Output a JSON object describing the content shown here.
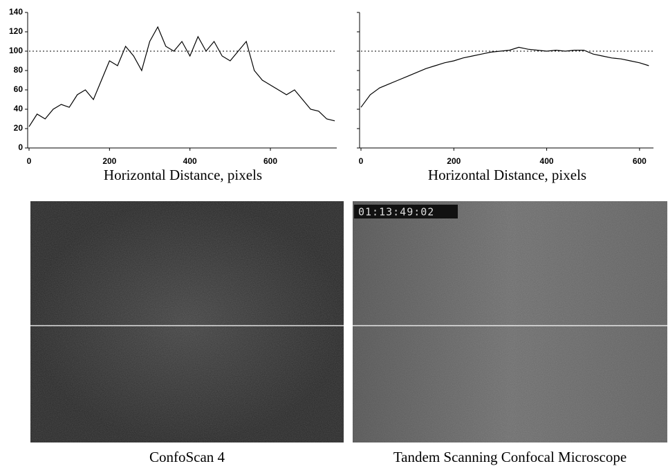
{
  "chart_data": [
    {
      "type": "line",
      "xlabel": "Horizontal Distance, pixels",
      "x": [
        0,
        20,
        40,
        60,
        80,
        100,
        120,
        140,
        160,
        180,
        200,
        220,
        240,
        260,
        280,
        300,
        320,
        340,
        360,
        380,
        400,
        420,
        440,
        460,
        480,
        500,
        520,
        540,
        560,
        580,
        600,
        620,
        640,
        660,
        680,
        700,
        720,
        740,
        760
      ],
      "series": [
        {
          "color": "#000000",
          "values": [
            22,
            35,
            30,
            40,
            45,
            42,
            55,
            60,
            50,
            70,
            90,
            85,
            105,
            95,
            80,
            110,
            125,
            105,
            100,
            110,
            95,
            115,
            100,
            110,
            95,
            90,
            100,
            110,
            80,
            70,
            65,
            60,
            55,
            60,
            50,
            40,
            38,
            30,
            28
          ]
        }
      ],
      "xlim": [
        0,
        765
      ],
      "xticks": [
        0,
        200,
        400,
        600
      ],
      "ylim": [
        0,
        140
      ],
      "yticks": [
        0,
        20,
        40,
        60,
        80,
        100,
        120,
        140
      ],
      "ytick_labels": true,
      "reference_line": 100
    },
    {
      "type": "line",
      "xlabel": "Horizontal Distance, pixels",
      "x": [
        0,
        20,
        40,
        60,
        80,
        100,
        120,
        140,
        160,
        180,
        200,
        220,
        240,
        260,
        280,
        300,
        320,
        340,
        360,
        380,
        400,
        420,
        440,
        460,
        480,
        500,
        520,
        540,
        560,
        580,
        600,
        620
      ],
      "series": [
        {
          "color": "#000000",
          "values": [
            42,
            55,
            62,
            66,
            70,
            74,
            78,
            82,
            85,
            88,
            90,
            93,
            95,
            97,
            99,
            100,
            101,
            104,
            102,
            101,
            100,
            101,
            100,
            101,
            101,
            97,
            95,
            93,
            92,
            90,
            88,
            85
          ]
        }
      ],
      "xlim": [
        0,
        630
      ],
      "xticks": [
        0,
        200,
        400,
        600
      ],
      "ylim": [
        0,
        140
      ],
      "yticks": [
        0,
        20,
        40,
        60,
        80,
        100,
        120,
        140
      ],
      "ytick_labels": false,
      "reference_line": 100
    }
  ],
  "images": [
    {
      "caption": "ConfoScan 4",
      "tone": "#262626"
    },
    {
      "caption": "Tandem Scanning Confocal Microscope",
      "timestamp": "01:13:49:02",
      "tone": "#6a6a6a"
    }
  ]
}
